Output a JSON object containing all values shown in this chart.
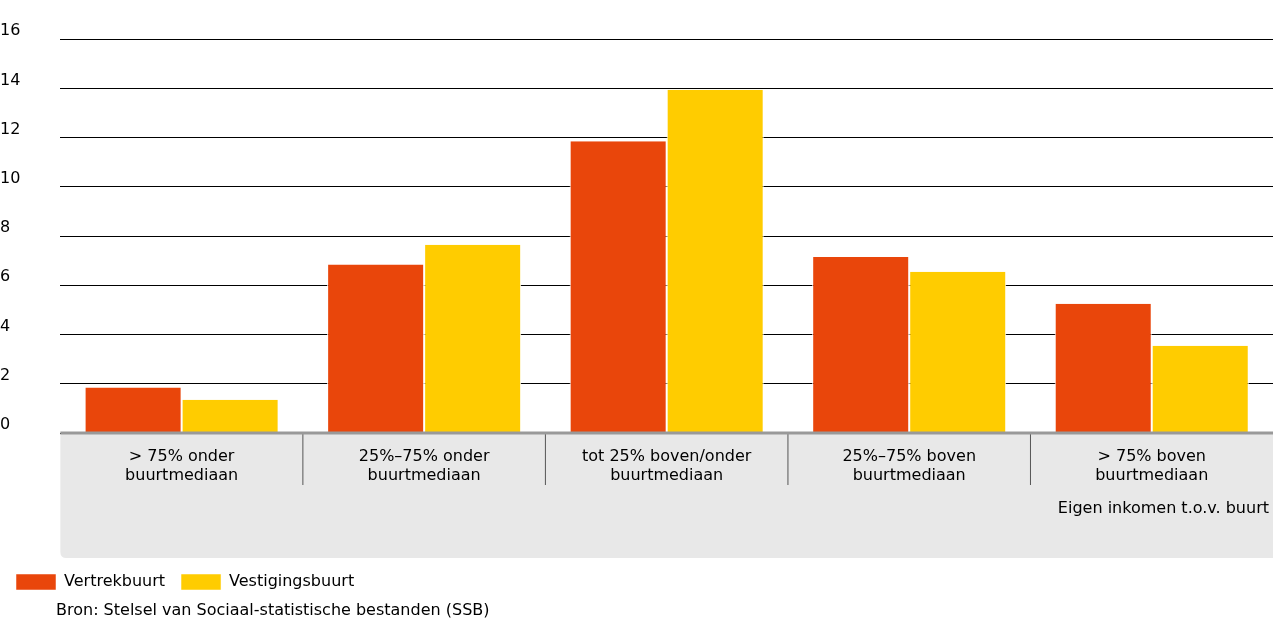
{
  "chart_data": {
    "type": "bar",
    "xlabel": "Eigen inkomen t.o.v. buurt",
    "categories": [
      "> 75% onder buurtmediaan",
      "25%–75% onder buurtmediaan",
      "tot 25% boven/onder buurtmediaan",
      "25%–75% boven buurtmediaan",
      "> 75% boven buurtmediaan"
    ],
    "series": [
      {
        "name": "Vertrekbuurt",
        "color": "#e9460b",
        "values": [
          1.85,
          6.85,
          11.85,
          7.15,
          5.25
        ]
      },
      {
        "name": "Vestigingsbuurt",
        "color": "#ffcc00",
        "values": [
          1.35,
          7.65,
          13.95,
          6.55,
          3.55
        ]
      }
    ],
    "ylim": [
      0,
      16
    ],
    "yticks": [
      0,
      2,
      4,
      6,
      8,
      10,
      12,
      14,
      16
    ],
    "grid": "y",
    "legend": "bottom left",
    "annotations": [
      "Bron: Stelsel van Sociaal-statistische bestanden (SSB)"
    ]
  }
}
